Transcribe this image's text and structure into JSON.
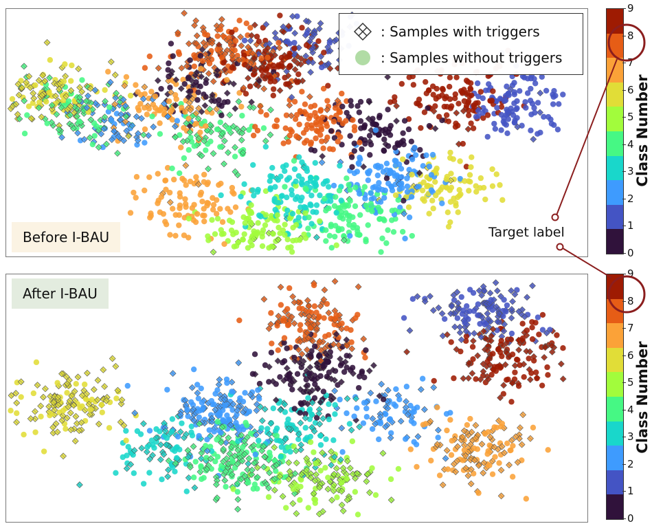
{
  "legend": {
    "with_triggers": ": Samples with triggers",
    "without_triggers": ": Samples without triggers"
  },
  "panels": {
    "before": "Before I-BAU",
    "after": "After I-BAU"
  },
  "annotation": {
    "target_label": "Target label"
  },
  "colorbar": {
    "title": "Class Number",
    "ticks": [
      "0",
      "1",
      "2",
      "3",
      "4",
      "5",
      "6",
      "7",
      "8",
      "9"
    ],
    "colors": [
      "#30123b",
      "#4454c4",
      "#3e9bfe",
      "#19d7cb",
      "#46f884",
      "#a2fc3c",
      "#e1dd37",
      "#fba238",
      "#e65d16",
      "#9e1b02"
    ],
    "highlight_class": "8",
    "highlight_color": "#8b1e1e"
  },
  "chart_data": [
    {
      "type": "scatter",
      "title": "Before I-BAU",
      "color_scale": "class number 0–9",
      "clusters": [
        {
          "class": 6,
          "cx": 0.08,
          "cy": 0.35,
          "n": 120,
          "trigger": 0.6
        },
        {
          "class": 4,
          "cx": 0.13,
          "cy": 0.42,
          "n": 90,
          "trigger": 0.7
        },
        {
          "class": 2,
          "cx": 0.2,
          "cy": 0.45,
          "n": 70,
          "trigger": 0.7
        },
        {
          "class": 7,
          "cx": 0.28,
          "cy": 0.4,
          "n": 90,
          "trigger": 0.3
        },
        {
          "class": 4,
          "cx": 0.36,
          "cy": 0.52,
          "n": 90,
          "trigger": 0.6
        },
        {
          "class": 0,
          "cx": 0.33,
          "cy": 0.3,
          "n": 80,
          "trigger": 0.5
        },
        {
          "class": 8,
          "cx": 0.37,
          "cy": 0.16,
          "n": 130,
          "trigger": 0.5
        },
        {
          "class": 9,
          "cx": 0.46,
          "cy": 0.22,
          "n": 140,
          "trigger": 0.5
        },
        {
          "class": 1,
          "cx": 0.52,
          "cy": 0.14,
          "n": 80,
          "trigger": 0.7
        },
        {
          "class": 8,
          "cx": 0.53,
          "cy": 0.45,
          "n": 100,
          "trigger": 0.1
        },
        {
          "class": 0,
          "cx": 0.63,
          "cy": 0.5,
          "n": 100,
          "trigger": 0.1
        },
        {
          "class": 9,
          "cx": 0.77,
          "cy": 0.37,
          "n": 120,
          "trigger": 0.1
        },
        {
          "class": 1,
          "cx": 0.88,
          "cy": 0.38,
          "n": 110,
          "trigger": 0.05
        },
        {
          "class": 7,
          "cx": 0.31,
          "cy": 0.78,
          "n": 90,
          "trigger": 0.05
        },
        {
          "class": 5,
          "cx": 0.44,
          "cy": 0.9,
          "n": 110,
          "trigger": 0.1
        },
        {
          "class": 3,
          "cx": 0.5,
          "cy": 0.74,
          "n": 110,
          "trigger": 0.05
        },
        {
          "class": 4,
          "cx": 0.6,
          "cy": 0.84,
          "n": 110,
          "trigger": 0.05
        },
        {
          "class": 2,
          "cx": 0.66,
          "cy": 0.7,
          "n": 120,
          "trigger": 0.05
        },
        {
          "class": 6,
          "cx": 0.75,
          "cy": 0.72,
          "n": 90,
          "trigger": 0.05
        }
      ]
    },
    {
      "type": "scatter",
      "title": "After I-BAU",
      "color_scale": "class number 0–9",
      "clusters": [
        {
          "class": 6,
          "cx": 0.11,
          "cy": 0.52,
          "n": 140,
          "trigger": 0.7
        },
        {
          "class": 8,
          "cx": 0.53,
          "cy": 0.21,
          "n": 140,
          "trigger": 0.5
        },
        {
          "class": 0,
          "cx": 0.53,
          "cy": 0.4,
          "n": 150,
          "trigger": 0.5
        },
        {
          "class": 1,
          "cx": 0.82,
          "cy": 0.15,
          "n": 130,
          "trigger": 0.6
        },
        {
          "class": 9,
          "cx": 0.85,
          "cy": 0.33,
          "n": 140,
          "trigger": 0.5
        },
        {
          "class": 2,
          "cx": 0.36,
          "cy": 0.55,
          "n": 160,
          "trigger": 0.5
        },
        {
          "class": 3,
          "cx": 0.5,
          "cy": 0.62,
          "n": 110,
          "trigger": 0.5
        },
        {
          "class": 4,
          "cx": 0.4,
          "cy": 0.75,
          "n": 170,
          "trigger": 0.6
        },
        {
          "class": 5,
          "cx": 0.55,
          "cy": 0.83,
          "n": 130,
          "trigger": 0.6
        },
        {
          "class": 3,
          "cx": 0.27,
          "cy": 0.7,
          "n": 90,
          "trigger": 0.5
        },
        {
          "class": 7,
          "cx": 0.81,
          "cy": 0.72,
          "n": 130,
          "trigger": 0.5
        },
        {
          "class": 2,
          "cx": 0.66,
          "cy": 0.55,
          "n": 80,
          "trigger": 0.5
        }
      ]
    }
  ]
}
